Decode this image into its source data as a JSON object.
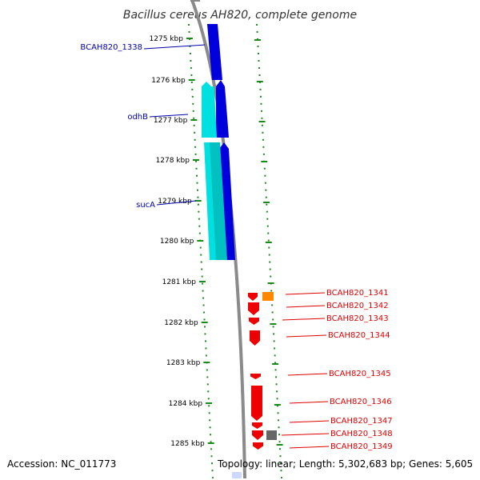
{
  "title": "Bacillus cereus AH820, complete genome",
  "accession_text": "Accession: NC_011773",
  "topology_text": "Topology: linear; Length: 5,302,683 bp; Genes: 5,605",
  "ticks": [
    {
      "label": "1275 kbp"
    },
    {
      "label": "1276 kbp"
    },
    {
      "label": "1277 kbp"
    },
    {
      "label": "1278 kbp"
    },
    {
      "label": "1279 kbp"
    },
    {
      "label": "1280 kbp"
    },
    {
      "label": "1281 kbp"
    },
    {
      "label": "1282 kbp"
    },
    {
      "label": "1283 kbp"
    },
    {
      "label": "1284 kbp"
    },
    {
      "label": "1285 kbp"
    }
  ],
  "left_genes": [
    {
      "name": "BCAH820_1338",
      "color": "#0000aa"
    },
    {
      "name": "odhB",
      "color": "#0000aa"
    },
    {
      "name": "sucA",
      "color": "#0000aa"
    }
  ],
  "right_genes": [
    {
      "name": "BCAH820_1341",
      "color": "#dd0000"
    },
    {
      "name": "BCAH820_1342",
      "color": "#dd0000"
    },
    {
      "name": "BCAH820_1343",
      "color": "#dd0000"
    },
    {
      "name": "BCAH820_1344",
      "color": "#dd0000"
    },
    {
      "name": "BCAH820_1345",
      "color": "#dd0000"
    },
    {
      "name": "BCAH820_1346",
      "color": "#dd0000"
    },
    {
      "name": "BCAH820_1347",
      "color": "#dd0000"
    },
    {
      "name": "BCAH820_1348",
      "color": "#dd0000"
    },
    {
      "name": "BCAH820_1349",
      "color": "#dd0000"
    }
  ],
  "colors": {
    "backbone": "#8a8a8a",
    "tick_green": "#1a8a1a",
    "blue_gene": "#0000dd",
    "cyan_gene": "#00e0e0",
    "red_gene": "#ee0000",
    "orange_gene": "#ff8800",
    "gray_gene": "#666666"
  }
}
